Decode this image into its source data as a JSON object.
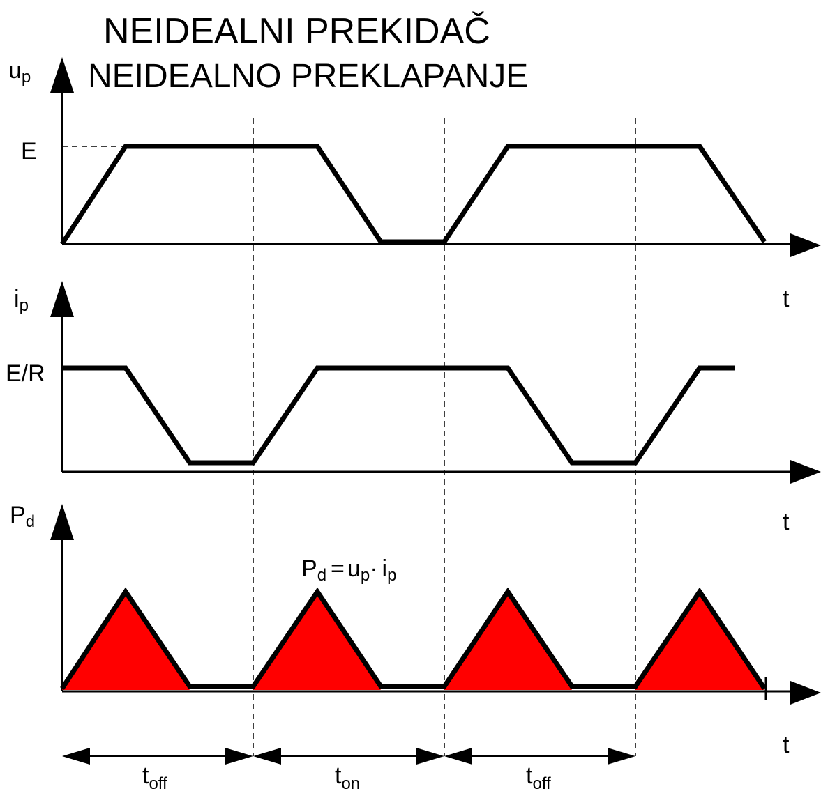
{
  "title": "NEIDEALNI PREKIDAČ",
  "subtitle": "NEIDEALNO PREKLAPANJE",
  "panels": {
    "voltage": {
      "axis_label": "u",
      "axis_label_sub": "p",
      "level_label": "E",
      "time_label": "t"
    },
    "current": {
      "axis_label": "i",
      "axis_label_sub": "p",
      "level_label": "E/R",
      "time_label": "t"
    },
    "power": {
      "axis_label": "P",
      "axis_label_sub": "d",
      "time_label": "t",
      "formula": {
        "lhs": "P",
        "lhs_sub": "d",
        "eq": "=",
        "u": "u",
        "u_sub": "p",
        "dot": "·",
        "i": "i",
        "i_sub": "p"
      },
      "fill_color": "#ff0000"
    }
  },
  "intervals": [
    {
      "main": "t",
      "sub": "off"
    },
    {
      "main": "t",
      "sub": "on"
    },
    {
      "main": "t",
      "sub": "off"
    }
  ]
}
